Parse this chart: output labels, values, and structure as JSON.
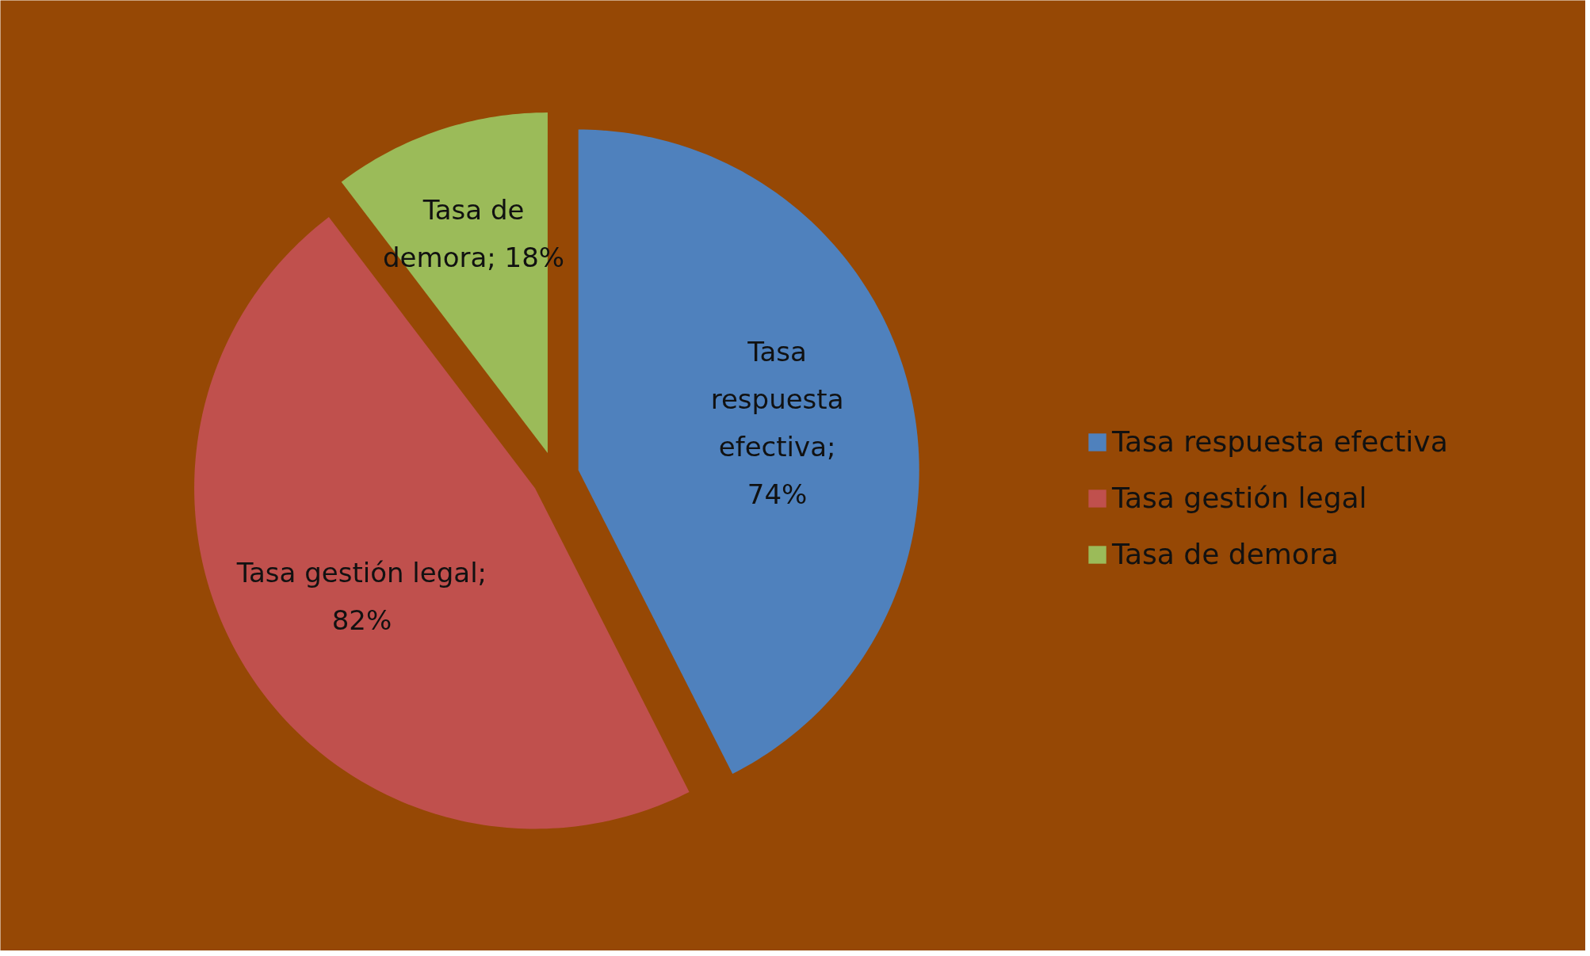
{
  "chart_data": {
    "type": "pie",
    "categories": [
      "Tasa respuesta efectiva",
      "Tasa gestión legal",
      "Tasa de demora"
    ],
    "values": [
      74,
      82,
      18
    ],
    "colors": [
      "#4f81bd",
      "#c0504d",
      "#9bbb59"
    ],
    "value_labels": [
      "Tasa respuesta efectiva; 74%",
      "Tasa gestión legal; 82%",
      "Tasa de demora; 18%"
    ],
    "legend": "right"
  }
}
